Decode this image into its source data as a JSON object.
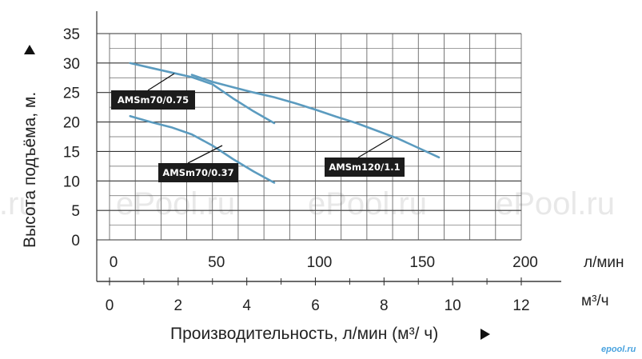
{
  "watermarks": [
    "l.ru",
    "ePool.ru",
    "ePool.ru",
    "ePool.ru"
  ],
  "brand": "epool.ru",
  "y_axis_arrow_icon": "triangle-up-icon",
  "x_axis_arrow_icon": "triangle-right-icon",
  "chart_data": {
    "type": "line",
    "title": "",
    "ylabel": "Высота подъёма, м.",
    "xlabel": "Производительность, л/мин (м³/ ч)",
    "x_unit_primary": "л/мин",
    "x_unit_secondary": "м³/ч",
    "ylim": [
      0,
      35
    ],
    "xlim": [
      0,
      200
    ],
    "y_ticks": [
      "0",
      "5",
      "10",
      "15",
      "20",
      "25",
      "30",
      "35"
    ],
    "x_ticks_lpm": [
      "0",
      "50",
      "100",
      "150",
      "200"
    ],
    "x_ticks_m3h": [
      "0",
      "2",
      "4",
      "6",
      "8",
      "10",
      "12"
    ],
    "grid": true,
    "line_color": "#5b9bbf",
    "series": [
      {
        "name": "AMSm70/0.75",
        "x": [
          10,
          20,
          30,
          40,
          50,
          55,
          60,
          70,
          80
        ],
        "y": [
          30,
          29.2,
          28.4,
          27.6,
          26.4,
          25.2,
          24,
          21.8,
          19.8
        ]
      },
      {
        "name": "AMSm70/0.37",
        "x": [
          10,
          20,
          30,
          40,
          50,
          60,
          70,
          80
        ],
        "y": [
          21,
          20,
          19.1,
          17.9,
          16,
          13.7,
          11.6,
          9.7
        ]
      },
      {
        "name": "AMSm120/1.1",
        "x": [
          40,
          50,
          60,
          70,
          80,
          90,
          100,
          110,
          120,
          130,
          140,
          150,
          160
        ],
        "y": [
          28,
          26.8,
          25.9,
          25,
          24.2,
          23.2,
          22.1,
          20.9,
          19.8,
          18.5,
          17.2,
          15.6,
          14
        ]
      }
    ]
  }
}
